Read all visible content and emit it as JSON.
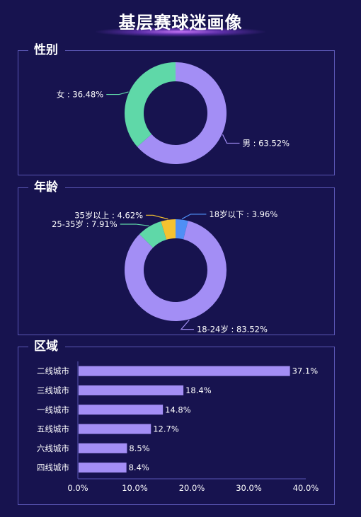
{
  "title": "基层赛球迷画像",
  "sections": {
    "gender": "性别",
    "age": "年龄",
    "region": "区域"
  },
  "colors": {
    "background": "#17134f",
    "purple": "#a38ef5",
    "green": "#5fd8a8",
    "yellow": "#f5c230",
    "blue": "#4f8ff5",
    "border": "#5a56b4"
  },
  "chart_data": [
    {
      "type": "pie",
      "title": "性别",
      "donut": true,
      "slices": [
        {
          "name": "男",
          "value": 63.52,
          "label": "男 : 63.52%",
          "color": "#a38ef5"
        },
        {
          "name": "女",
          "value": 36.48,
          "label": "女 : 36.48%",
          "color": "#5fd8a8"
        }
      ]
    },
    {
      "type": "pie",
      "title": "年龄",
      "donut": true,
      "slices": [
        {
          "name": "18岁以下",
          "value": 3.96,
          "label": "18岁以下 : 3.96%",
          "color": "#4f8ff5"
        },
        {
          "name": "18-24岁",
          "value": 83.52,
          "label": "18-24岁 : 83.52%",
          "color": "#a38ef5"
        },
        {
          "name": "25-35岁",
          "value": 7.91,
          "label": "25-35岁 : 7.91%",
          "color": "#5fd8a8"
        },
        {
          "name": "35岁以上",
          "value": 4.62,
          "label": "35岁以上 : 4.62%",
          "color": "#f5c230"
        }
      ]
    },
    {
      "type": "bar",
      "title": "区域",
      "orientation": "horizontal",
      "categories": [
        "二线城市",
        "三线城市",
        "一线城市",
        "五线城市",
        "六线城市",
        "四线城市"
      ],
      "values": [
        37.1,
        18.4,
        14.8,
        12.7,
        8.5,
        8.4
      ],
      "value_labels": [
        "37.1%",
        "18.4%",
        "14.8%",
        "12.7%",
        "8.5%",
        "8.4%"
      ],
      "xlim": [
        0,
        40
      ],
      "xticks": [
        "0.0%",
        "10.0%",
        "20.0%",
        "30.0%",
        "40.0%"
      ],
      "grid": false,
      "color": "#a38ef5"
    }
  ]
}
